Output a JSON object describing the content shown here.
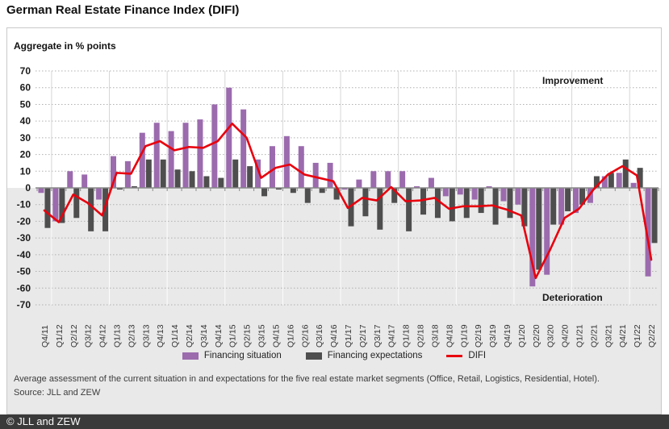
{
  "title": "German Real Estate Finance Index (DIFI)",
  "axis_note": "Aggregate in % points",
  "annotations": {
    "top": "Improvement",
    "bottom": "Deterioration"
  },
  "legend": {
    "situation_label": "Financing situation",
    "expectations_label": "Financing expectations",
    "difi_label": "DIFI"
  },
  "colors": {
    "situation": "#9b6bae",
    "expectations": "#4e4e4e",
    "difi": "#e8000d",
    "negative_area": "#e9e9e9",
    "grid_dotted": "#b0b0b0",
    "zero_line": "#888888",
    "year_separator": "#d6d6d6",
    "bottom_bar_bg": "#3a3a3a"
  },
  "chart_data": {
    "type": "bar",
    "title": "German Real Estate Finance Index (DIFI)",
    "ylabel": "Aggregate in % points",
    "ylim": [
      -70,
      70
    ],
    "ytick_step": 10,
    "grid": "horizontal dotted",
    "legend_position": "bottom",
    "categories": [
      "Q4/11",
      "Q1/12",
      "Q2/12",
      "Q3/12",
      "Q4/12",
      "Q1/13",
      "Q2/13",
      "Q3/13",
      "Q4/13",
      "Q1/14",
      "Q2/14",
      "Q3/14",
      "Q4/14",
      "Q1/15",
      "Q2/15",
      "Q3/15",
      "Q4/15",
      "Q1/16",
      "Q2/16",
      "Q3/16",
      "Q4/16",
      "Q1/17",
      "Q2/17",
      "Q3/17",
      "Q4/17",
      "Q1/18",
      "Q2/18",
      "Q3/18",
      "Q4/18",
      "Q1/19",
      "Q2/19",
      "Q3/19",
      "Q4/19",
      "Q1/20",
      "Q2/20",
      "Q3/20",
      "Q4/20",
      "Q1/21",
      "Q2/21",
      "Q3/21",
      "Q4/21",
      "Q1/22",
      "Q2/22"
    ],
    "series": [
      {
        "name": "Financing situation",
        "type": "bar",
        "color": "#9b6bae",
        "values": [
          -3,
          -20,
          10,
          8,
          -7,
          19,
          16,
          33,
          39,
          34,
          39,
          41,
          50,
          60,
          47,
          17,
          25,
          31,
          25,
          15,
          15,
          -1,
          5,
          10,
          10,
          10,
          1,
          6,
          -5,
          -4,
          -7,
          1,
          -8,
          -10,
          -59,
          -52,
          -22,
          -15,
          -9,
          7,
          9,
          3,
          -53
        ]
      },
      {
        "name": "Financing expectations",
        "type": "bar",
        "color": "#4e4e4e",
        "values": [
          -24,
          -21,
          -18,
          -26,
          -26,
          -1,
          1,
          17,
          17,
          11,
          10,
          7,
          6,
          17,
          13,
          -5,
          -1,
          -3,
          -9,
          -3,
          -7,
          -23,
          -17,
          -25,
          -9,
          -26,
          -16,
          -18,
          -20,
          -18,
          -15,
          -22,
          -18,
          -23,
          -49,
          -22,
          -14,
          -10,
          7,
          9,
          17,
          12,
          -33
        ]
      },
      {
        "name": "DIFI",
        "type": "line",
        "color": "#e8000d",
        "values": [
          -13.5,
          -20.5,
          -4,
          -9,
          -16.5,
          9,
          8.5,
          25,
          28,
          22.5,
          24.5,
          24,
          28,
          38.5,
          30,
          6,
          12,
          14,
          8,
          6,
          4,
          -12,
          -6,
          -7.5,
          0.5,
          -8,
          -7.5,
          -6,
          -12.5,
          -11,
          -11,
          -10.5,
          -13,
          -16.5,
          -54,
          -37,
          -18,
          -12.5,
          -1,
          8,
          13,
          7.5,
          -43
        ]
      }
    ],
    "annotations": [
      "Improvement",
      "Deterioration"
    ]
  },
  "footer": {
    "line1": "Average assessment of the current situation in and expectations for the five real estate market segments (Office, Retail, Logistics, Residential, Hotel).",
    "line2": "Source: JLL and ZEW"
  },
  "bottom_bar": {
    "text": "© JLL and ZEW"
  }
}
